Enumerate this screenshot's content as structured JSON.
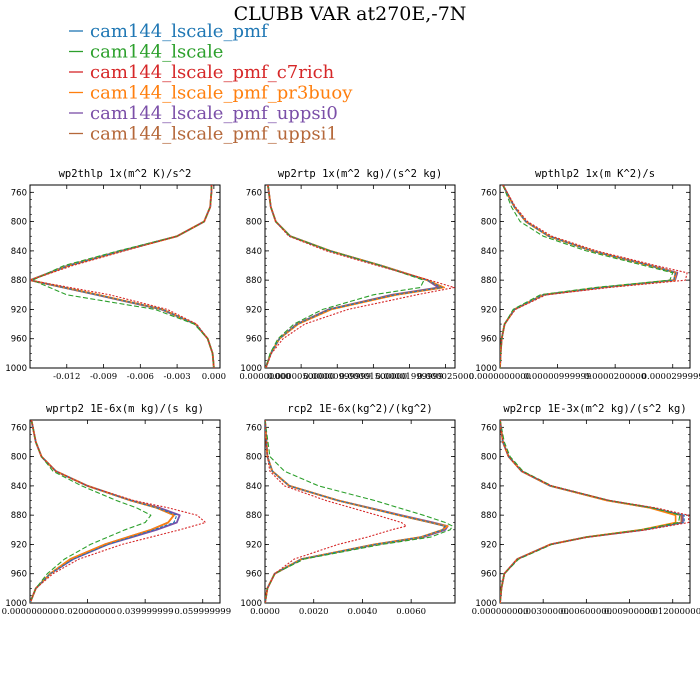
{
  "figure_title": "CLUBB VAR at270E,-7N",
  "legend": [
    {
      "name": "cam144_lscale_pmf",
      "color": "#1f77b4"
    },
    {
      "name": "cam144_lscale",
      "color": "#2ca02c"
    },
    {
      "name": "cam144_lscale_pmf_c7rich",
      "color": "#d62728"
    },
    {
      "name": "cam144_lscale_pmf_pr3buoy",
      "color": "#ff7f0e"
    },
    {
      "name": "cam144_lscale_pmf_uppsi0",
      "color": "#7b4fa8"
    },
    {
      "name": "cam144_lscale_pmf_uppsi1",
      "color": "#b5683a"
    }
  ],
  "chart_data": [
    {
      "type": "line",
      "title": "wp2thlp  1x(m^2 K)/s^2",
      "ylim": [
        1000,
        750
      ],
      "yticks": [
        760,
        800,
        840,
        880,
        920,
        960,
        1000
      ],
      "xlim": [
        -0.015,
        0.0005
      ],
      "xticks": [
        -0.012,
        -0.009,
        -0.006,
        -0.003,
        0.0
      ],
      "xtick_labels": [
        "-0.012",
        "-0.009",
        "-0.006",
        "-0.003",
        "0.000"
      ],
      "y": [
        750,
        760,
        780,
        800,
        820,
        840,
        860,
        880,
        900,
        920,
        940,
        960,
        980,
        1000
      ],
      "series": [
        {
          "name": "cam144_lscale_pmf",
          "x": [
            -0.0002,
            -0.0002,
            -0.0003,
            -0.0008,
            -0.003,
            -0.0075,
            -0.0118,
            -0.015,
            -0.0095,
            -0.0042,
            -0.0015,
            -0.0005,
            -0.0001,
            0.0
          ]
        },
        {
          "name": "cam144_lscale",
          "x": [
            -0.0002,
            -0.0002,
            -0.0003,
            -0.0008,
            -0.003,
            -0.0078,
            -0.0122,
            -0.0148,
            -0.012,
            -0.0048,
            -0.0016,
            -0.0005,
            -0.0001,
            0.0
          ]
        },
        {
          "name": "cam144_lscale_pmf_c7rich",
          "x": [
            -0.0002,
            -0.0002,
            -0.0003,
            -0.0008,
            -0.003,
            -0.0073,
            -0.0115,
            -0.015,
            -0.0085,
            -0.0038,
            -0.0014,
            -0.0005,
            -0.0001,
            0.0
          ]
        },
        {
          "name": "cam144_lscale_pmf_pr3buoy",
          "x": [
            -0.0002,
            -0.0002,
            -0.0003,
            -0.0008,
            -0.003,
            -0.0075,
            -0.0118,
            -0.015,
            -0.0094,
            -0.0042,
            -0.0015,
            -0.0005,
            -0.0001,
            0.0
          ]
        },
        {
          "name": "cam144_lscale_pmf_uppsi0",
          "x": [
            -0.0002,
            -0.0002,
            -0.0003,
            -0.0008,
            -0.003,
            -0.0076,
            -0.0119,
            -0.015,
            -0.0096,
            -0.0043,
            -0.0015,
            -0.0005,
            -0.0001,
            0.0
          ]
        },
        {
          "name": "cam144_lscale_pmf_uppsi1",
          "x": [
            -0.0002,
            -0.0002,
            -0.0003,
            -0.0008,
            -0.003,
            -0.0075,
            -0.0118,
            -0.015,
            -0.0095,
            -0.0042,
            -0.0015,
            -0.0005,
            -0.0001,
            0.0
          ]
        }
      ]
    },
    {
      "type": "line",
      "title": "wp2rtp  1x(m^2 kg)/(s^2 kg)",
      "ylim": [
        1000,
        750
      ],
      "yticks": [
        760,
        800,
        840,
        880,
        920,
        960,
        1000
      ],
      "xlim": [
        0,
        2.63e-05
      ],
      "xticks": [
        0,
        5e-06,
        1e-05,
        1.5e-05,
        2e-05,
        2.5e-05
      ],
      "xtick_labels": [
        "0.00000000",
        "0.00000500000",
        "0.00000999999",
        "0.00001500000",
        "0.00001999999",
        "0.000025000"
      ],
      "y": [
        750,
        780,
        800,
        820,
        840,
        860,
        880,
        890,
        900,
        920,
        940,
        960,
        980,
        1000
      ],
      "series": [
        {
          "name": "cam144_lscale_pmf",
          "x": [
            4e-07,
            8e-07,
            1.5e-06,
            3.5e-06,
            9e-06,
            1.6e-05,
            2.25e-05,
            2.45e-05,
            1.8e-05,
            9e-06,
            4.5e-06,
            2e-06,
            8e-07,
            1e-07
          ]
        },
        {
          "name": "cam144_lscale",
          "x": [
            4e-07,
            8e-07,
            1.5e-06,
            3.5e-06,
            9e-06,
            1.6e-05,
            2.2e-05,
            2.15e-05,
            1.5e-05,
            8e-06,
            4e-06,
            1.8e-06,
            7e-07,
            1e-07
          ]
        },
        {
          "name": "cam144_lscale_pmf_c7rich",
          "x": [
            4e-07,
            8e-07,
            1.5e-06,
            3.3e-06,
            8.5e-06,
            1.55e-05,
            2.28e-05,
            2.62e-05,
            2.1e-05,
            1.15e-05,
            5.5e-06,
            2.5e-06,
            9e-07,
            1e-07
          ]
        },
        {
          "name": "cam144_lscale_pmf_pr3buoy",
          "x": [
            4e-07,
            8e-07,
            1.5e-06,
            3.5e-06,
            9e-06,
            1.6e-05,
            2.25e-05,
            2.48e-05,
            1.82e-05,
            9.2e-06,
            4.6e-06,
            2e-06,
            8e-07,
            1e-07
          ]
        },
        {
          "name": "cam144_lscale_pmf_uppsi0",
          "x": [
            4e-07,
            8e-07,
            1.5e-06,
            3.5e-06,
            9e-06,
            1.6e-05,
            2.25e-05,
            2.4e-05,
            1.76e-05,
            8.8e-06,
            4.4e-06,
            2e-06,
            8e-07,
            1e-07
          ]
        },
        {
          "name": "cam144_lscale_pmf_uppsi1",
          "x": [
            4e-07,
            8e-07,
            1.5e-06,
            3.5e-06,
            9e-06,
            1.6e-05,
            2.25e-05,
            2.45e-05,
            1.8e-05,
            9e-06,
            4.5e-06,
            2e-06,
            8e-07,
            1e-07
          ]
        }
      ]
    },
    {
      "type": "line",
      "title": "wpthlp2  1x(m K^2)/s",
      "ylim": [
        1000,
        750
      ],
      "yticks": [
        760,
        800,
        840,
        880,
        920,
        960,
        1000
      ],
      "xlim": [
        0,
        3.3e-05
      ],
      "xticks": [
        0,
        1e-05,
        2e-05,
        3e-05
      ],
      "xtick_labels": [
        "0.0000000000",
        "0.00000999999",
        "0.0000200000",
        "0.0000299999"
      ],
      "y": [
        750,
        780,
        800,
        820,
        840,
        860,
        870,
        880,
        890,
        900,
        920,
        940,
        960,
        980,
        1000
      ],
      "series": [
        {
          "name": "cam144_lscale_pmf",
          "x": [
            5e-07,
            2.5e-06,
            4.5e-06,
            8.5e-06,
            1.6e-05,
            2.6e-05,
            3.05e-05,
            3.02e-05,
            1.75e-05,
            7.5e-06,
            2.5e-06,
            8e-07,
            3e-07,
            1e-07,
            0.0
          ]
        },
        {
          "name": "cam144_lscale",
          "x": [
            5e-07,
            2e-06,
            3.5e-06,
            7.5e-06,
            1.5e-05,
            2.5e-05,
            3e-05,
            2.95e-05,
            1.65e-05,
            7e-06,
            2.3e-06,
            8e-07,
            3e-07,
            1e-07,
            0.0
          ]
        },
        {
          "name": "cam144_lscale_pmf_c7rich",
          "x": [
            5e-07,
            2.7e-06,
            4.8e-06,
            9e-06,
            1.68e-05,
            2.7e-05,
            3.25e-05,
            3.22e-05,
            1.9e-05,
            8e-06,
            2.7e-06,
            8e-07,
            3e-07,
            1e-07,
            0.0
          ]
        },
        {
          "name": "cam144_lscale_pmf_pr3buoy",
          "x": [
            5e-07,
            2.5e-06,
            4.5e-06,
            8.5e-06,
            1.6e-05,
            2.6e-05,
            3.06e-05,
            3.03e-05,
            1.76e-05,
            7.5e-06,
            2.5e-06,
            8e-07,
            3e-07,
            1e-07,
            0.0
          ]
        },
        {
          "name": "cam144_lscale_pmf_uppsi0",
          "x": [
            5e-07,
            2.5e-06,
            4.5e-06,
            8.5e-06,
            1.6e-05,
            2.62e-05,
            3.08e-05,
            3.04e-05,
            1.78e-05,
            7.6e-06,
            2.5e-06,
            8e-07,
            3e-07,
            1e-07,
            0.0
          ]
        },
        {
          "name": "cam144_lscale_pmf_uppsi1",
          "x": [
            5e-07,
            2.5e-06,
            4.5e-06,
            8.5e-06,
            1.6e-05,
            2.6e-05,
            3.05e-05,
            3.02e-05,
            1.75e-05,
            7.5e-06,
            2.5e-06,
            8e-07,
            3e-07,
            1e-07,
            0.0
          ]
        }
      ]
    },
    {
      "type": "line",
      "title": "wprtp2  1E-6x(m kg)/(s kg)",
      "ylim": [
        1000,
        750
      ],
      "yticks": [
        760,
        800,
        840,
        880,
        920,
        960,
        1000
      ],
      "xlim": [
        0,
        0.066
      ],
      "xticks": [
        0,
        0.02,
        0.04,
        0.06
      ],
      "xtick_labels": [
        "0.000000000",
        "0.020000000",
        "0.039999999",
        "0.059999999"
      ],
      "y": [
        750,
        780,
        800,
        820,
        840,
        860,
        870,
        880,
        890,
        900,
        920,
        940,
        960,
        980,
        1000
      ],
      "series": [
        {
          "name": "cam144_lscale_pmf",
          "x": [
            0.0005,
            0.002,
            0.004,
            0.009,
            0.02,
            0.035,
            0.044,
            0.051,
            0.05,
            0.043,
            0.027,
            0.015,
            0.007,
            0.002,
            0.0
          ]
        },
        {
          "name": "cam144_lscale",
          "x": [
            0.0005,
            0.002,
            0.004,
            0.008,
            0.018,
            0.03,
            0.037,
            0.042,
            0.04,
            0.033,
            0.021,
            0.012,
            0.006,
            0.002,
            0.0
          ]
        },
        {
          "name": "cam144_lscale_pmf_c7rich",
          "x": [
            0.0005,
            0.002,
            0.004,
            0.009,
            0.02,
            0.036,
            0.048,
            0.058,
            0.061,
            0.052,
            0.032,
            0.017,
            0.008,
            0.002,
            0.0
          ]
        },
        {
          "name": "cam144_lscale_pmf_pr3buoy",
          "x": [
            0.0005,
            0.002,
            0.004,
            0.009,
            0.02,
            0.035,
            0.044,
            0.05,
            0.048,
            0.042,
            0.026,
            0.014,
            0.007,
            0.002,
            0.0
          ]
        },
        {
          "name": "cam144_lscale_pmf_uppsi0",
          "x": [
            0.0005,
            0.002,
            0.004,
            0.009,
            0.02,
            0.035,
            0.045,
            0.052,
            0.051,
            0.044,
            0.027,
            0.015,
            0.007,
            0.002,
            0.0
          ]
        },
        {
          "name": "cam144_lscale_pmf_uppsi1",
          "x": [
            0.0005,
            0.002,
            0.004,
            0.009,
            0.02,
            0.035,
            0.044,
            0.05,
            0.048,
            0.042,
            0.026,
            0.014,
            0.007,
            0.002,
            0.0
          ]
        }
      ]
    },
    {
      "type": "line",
      "title": "rcp2  1E-6x(kg^2)/(kg^2)",
      "ylim": [
        1000,
        750
      ],
      "yticks": [
        760,
        800,
        840,
        880,
        920,
        960,
        1000
      ],
      "xlim": [
        0,
        0.0078
      ],
      "xticks": [
        0,
        0.002,
        0.004,
        0.006
      ],
      "xtick_labels": [
        "0.0000",
        "0.0020",
        "0.0040",
        "0.0060"
      ],
      "y": [
        750,
        800,
        820,
        840,
        860,
        880,
        890,
        895,
        900,
        910,
        920,
        940,
        960,
        980,
        1000
      ],
      "series": [
        {
          "name": "cam144_lscale_pmf",
          "x": [
            0.0,
            0.0001,
            0.0003,
            0.001,
            0.003,
            0.0055,
            0.0068,
            0.0074,
            0.0073,
            0.0064,
            0.0045,
            0.0015,
            0.0004,
            0.0001,
            0.0
          ]
        },
        {
          "name": "cam144_lscale",
          "x": [
            0.0,
            0.0002,
            0.0008,
            0.0022,
            0.0045,
            0.0065,
            0.0074,
            0.0077,
            0.0076,
            0.0068,
            0.0048,
            0.0016,
            0.0004,
            0.0001,
            0.0
          ]
        },
        {
          "name": "cam144_lscale_pmf_c7rich",
          "x": [
            0.0,
            0.0001,
            0.0002,
            0.0008,
            0.0025,
            0.0046,
            0.0056,
            0.0058,
            0.0052,
            0.0042,
            0.003,
            0.0012,
            0.0004,
            0.0001,
            0.0
          ]
        },
        {
          "name": "cam144_lscale_pmf_pr3buoy",
          "x": [
            0.0,
            0.0001,
            0.0003,
            0.001,
            0.003,
            0.0055,
            0.0068,
            0.0075,
            0.0073,
            0.0064,
            0.0045,
            0.0015,
            0.0004,
            0.0001,
            0.0
          ]
        },
        {
          "name": "cam144_lscale_pmf_uppsi0",
          "x": [
            0.0,
            0.0001,
            0.0003,
            0.001,
            0.003,
            0.0056,
            0.0069,
            0.0075,
            0.0074,
            0.0065,
            0.0046,
            0.0015,
            0.0004,
            0.0001,
            0.0
          ]
        },
        {
          "name": "cam144_lscale_pmf_uppsi1",
          "x": [
            0.0,
            0.0001,
            0.0003,
            0.001,
            0.003,
            0.0055,
            0.0068,
            0.0074,
            0.0073,
            0.0064,
            0.0045,
            0.0015,
            0.0004,
            0.0001,
            0.0
          ]
        }
      ]
    },
    {
      "type": "line",
      "title": "wp2rcp  1E-3x(m^2 kg)/(s^2 kg)",
      "ylim": [
        1000,
        750
      ],
      "yticks": [
        760,
        800,
        840,
        880,
        920,
        960,
        1000
      ],
      "xlim": [
        0,
        0.0132
      ],
      "xticks": [
        0,
        0.003,
        0.006,
        0.009,
        0.012
      ],
      "xtick_labels": [
        "0.000000000",
        "0.00300000",
        "0.00600000",
        "0.00900000",
        "0.012000000"
      ],
      "y": [
        750,
        780,
        800,
        820,
        840,
        860,
        870,
        880,
        890,
        900,
        910,
        920,
        940,
        960,
        980,
        1000
      ],
      "series": [
        {
          "name": "cam144_lscale_pmf",
          "x": [
            0.0,
            0.0002,
            0.0006,
            0.0015,
            0.0035,
            0.0075,
            0.0105,
            0.0128,
            0.0128,
            0.01,
            0.006,
            0.0035,
            0.0012,
            0.0003,
            0.0001,
            0.0
          ]
        },
        {
          "name": "cam144_lscale",
          "x": [
            0.0,
            0.0003,
            0.0007,
            0.0016,
            0.0036,
            0.0076,
            0.0106,
            0.0125,
            0.0124,
            0.0098,
            0.006,
            0.0036,
            0.0013,
            0.0003,
            0.0001,
            0.0
          ]
        },
        {
          "name": "cam144_lscale_pmf_c7rich",
          "x": [
            0.0,
            0.0002,
            0.0006,
            0.0015,
            0.0036,
            0.0076,
            0.0108,
            0.0131,
            0.0131,
            0.0102,
            0.0061,
            0.0035,
            0.0012,
            0.0003,
            0.0001,
            0.0
          ]
        },
        {
          "name": "cam144_lscale_pmf_pr3buoy",
          "x": [
            0.0,
            0.0002,
            0.0006,
            0.0015,
            0.0035,
            0.0074,
            0.0104,
            0.0122,
            0.0122,
            0.0098,
            0.006,
            0.0035,
            0.0012,
            0.0003,
            0.0001,
            0.0
          ]
        },
        {
          "name": "cam144_lscale_pmf_uppsi0",
          "x": [
            0.0,
            0.0002,
            0.0006,
            0.0015,
            0.0035,
            0.0075,
            0.0105,
            0.0127,
            0.0127,
            0.01,
            0.006,
            0.0035,
            0.0012,
            0.0003,
            0.0001,
            0.0
          ]
        },
        {
          "name": "cam144_lscale_pmf_uppsi1",
          "x": [
            0.0,
            0.0002,
            0.0006,
            0.0015,
            0.0035,
            0.0075,
            0.0105,
            0.0126,
            0.0126,
            0.0099,
            0.006,
            0.0035,
            0.0012,
            0.0003,
            0.0001,
            0.0
          ]
        }
      ]
    }
  ]
}
